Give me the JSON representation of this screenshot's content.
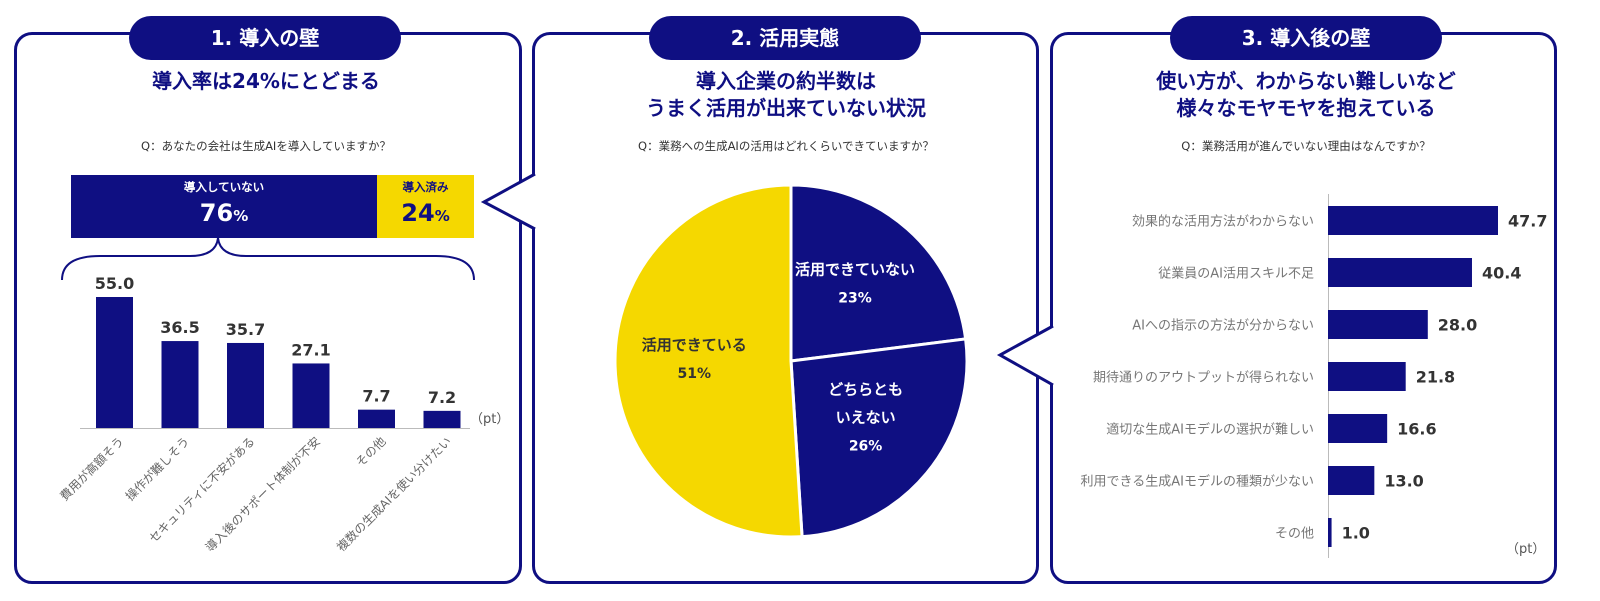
{
  "colors": {
    "navy": "#0f0f82",
    "yellow": "#f5d800"
  },
  "panel1": {
    "tag": "1. 導入の壁",
    "title": "導入率は24%にとどまる",
    "question": "Q：あなたの会社は生成AIを導入していますか？",
    "not_adopted": {
      "label": "導入していない",
      "value": "76",
      "unit": "%"
    },
    "adopted": {
      "label": "導入済み",
      "value": "24",
      "unit": "%"
    },
    "unit": "（pt）"
  },
  "panel2": {
    "tag": "2. 活用実態",
    "title_line1": "導入企業の約半数は",
    "title_line2": "うまく活用が出来ていない状況",
    "question": "Q：業務への生成AIの活用はどれくらいできていますか？"
  },
  "panel3": {
    "tag": "3. 導入後の壁",
    "title_line1": "使い方が、わからない難しいなど",
    "title_line2": "様々なモヤモヤを抱えている",
    "question": "Q：業務活用が進んでいない理由はなんですか？",
    "unit": "（pt）"
  },
  "chart_data": [
    {
      "type": "bar",
      "categories": [
        "費用が高額そう",
        "操作が難しそう",
        "セキュリティに不安がある",
        "導入後のサポート体制が不安",
        "その他",
        "複数の生成AIを使い分けたい"
      ],
      "values": [
        55.0,
        36.5,
        35.7,
        27.1,
        7.7,
        7.2
      ],
      "ylim": [
        0,
        55
      ]
    },
    {
      "type": "pie",
      "slices": [
        {
          "label": "活用できていない",
          "value": 23,
          "value_label": "23%"
        },
        {
          "label": "どちらとも いえない",
          "value": 26,
          "value_label": "26%"
        },
        {
          "label": "活用できている",
          "value": 51,
          "value_label": "51%"
        }
      ]
    },
    {
      "type": "bar",
      "orientation": "horizontal",
      "categories": [
        "効果的な活用方法がわからない",
        "従業員のAI活用スキル不足",
        "AIへの指示の方法が分からない",
        "期待通りのアウトプットが得られない",
        "適切な生成AIモデルの選択が難しい",
        "利用できる生成AIモデルの種類が少ない",
        "その他"
      ],
      "values": [
        47.7,
        40.4,
        28.0,
        21.8,
        16.6,
        13.0,
        1.0
      ],
      "xlim": [
        0,
        50
      ]
    }
  ]
}
